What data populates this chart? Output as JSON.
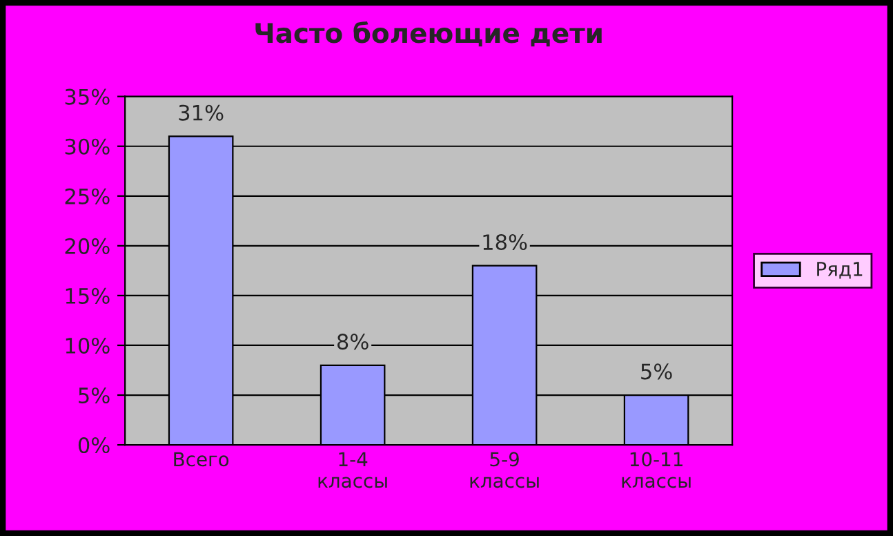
{
  "chart_data": {
    "type": "bar",
    "title": "Часто болеющие дети",
    "categories": [
      "Всего",
      "1-4\nклассы",
      "5-9\nклассы",
      "10-11\nклассы"
    ],
    "series": [
      {
        "name": "Ряд1",
        "color": "#9999ff",
        "values": [
          31,
          8,
          18,
          5
        ]
      }
    ],
    "value_labels": [
      "31%",
      "8%",
      "18%",
      "5%"
    ],
    "ylim": [
      0,
      35
    ],
    "yticks": [
      {
        "value": 0,
        "label": "0%"
      },
      {
        "value": 5,
        "label": "5%"
      },
      {
        "value": 10,
        "label": "10%"
      },
      {
        "value": 15,
        "label": "15%"
      },
      {
        "value": 20,
        "label": "20%"
      },
      {
        "value": 25,
        "label": "25%"
      },
      {
        "value": 30,
        "label": "30%"
      },
      {
        "value": 35,
        "label": "35%"
      }
    ],
    "grid": "y",
    "legend": "right"
  }
}
